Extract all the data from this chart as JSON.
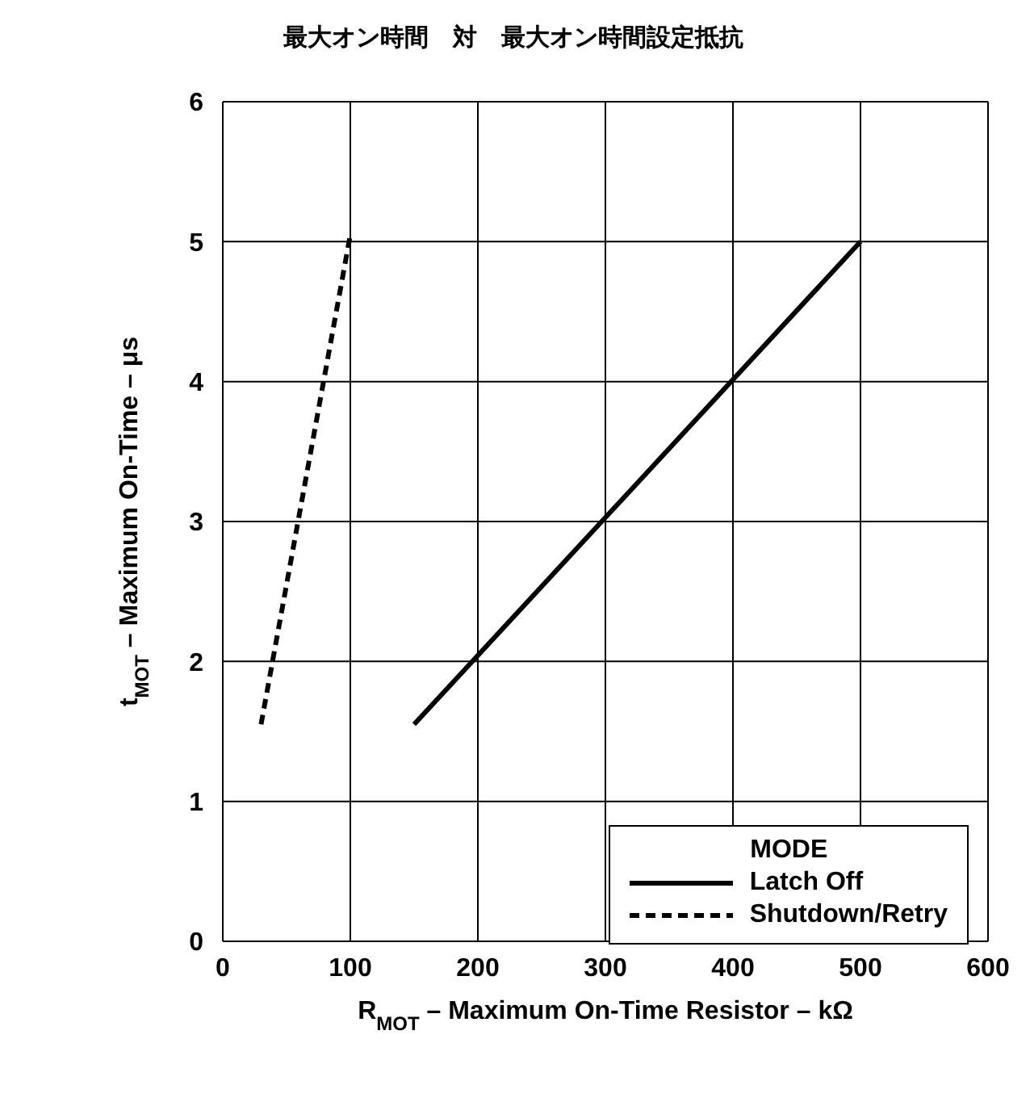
{
  "chart_data": {
    "type": "line",
    "title": "最大オン時間　対　最大オン時間設定抵抗",
    "xlabel": "R$_{MOT}$ – Maximum On-Time Resistor – kΩ",
    "ylabel": "t$_{MOT}$ – Maximum On-Time – μs",
    "legend_title": "MODE",
    "xlim": [
      0,
      600
    ],
    "xticks": [
      0,
      100,
      200,
      300,
      400,
      500,
      600
    ],
    "ylim": [
      0,
      6
    ],
    "yticks": [
      0,
      1,
      2,
      3,
      4,
      5,
      6
    ],
    "grid": true,
    "legend": "bottom right",
    "marker": "none",
    "series": [
      {
        "name": "Latch Off",
        "color": "#000000",
        "line_style": "solid",
        "x": [
          150,
          500
        ],
        "values": [
          1.55,
          5
        ]
      },
      {
        "name": "Shutdown/Retry",
        "color": "#000000",
        "line_style": "dashed",
        "x": [
          30,
          100
        ],
        "values": [
          1.55,
          5.05
        ]
      }
    ]
  }
}
